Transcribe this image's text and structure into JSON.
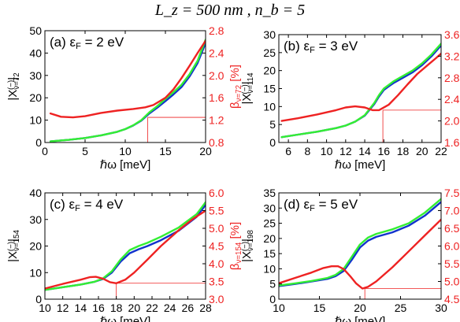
{
  "figure": {
    "title": "L_z = 500 nm , n_b = 5"
  },
  "colors": {
    "green": "#33ee33",
    "blue": "#1133cc",
    "red": "#ee2222",
    "axis": "#000000",
    "right_axis": "#ee2222"
  },
  "chart_data": [
    {
      "type": "line",
      "label": "(a) ε_F = 2 eV",
      "xlabel": "ℏω [meV]",
      "ylabel": "|X_{ν=72}^{(−)}|",
      "y2label": "β_{ν=72} [%]",
      "xlim": [
        0,
        20
      ],
      "ylim": [
        0,
        50
      ],
      "y2lim": [
        0.8,
        2.8
      ],
      "x_ticks": [
        "0",
        "5",
        "10",
        "15",
        "20"
      ],
      "y_ticks": [
        "0",
        "10",
        "20",
        "30",
        "40",
        "50"
      ],
      "y2_ticks": [
        "0.8",
        "1.2",
        "1.6",
        "2.0",
        "2.4",
        "2.8"
      ],
      "marker": {
        "x": 12.8,
        "y2": 1.25
      },
      "series": [
        {
          "color_key": "green",
          "axis": "left",
          "x": [
            0.7,
            3,
            5,
            7,
            9,
            10,
            11,
            12,
            13,
            14,
            15,
            16,
            17,
            18,
            19,
            20
          ],
          "y": [
            0.5,
            1.2,
            2.0,
            3.2,
            4.8,
            6.0,
            7.7,
            10.0,
            13.5,
            16.3,
            19.5,
            22.5,
            25.8,
            30.5,
            36.5,
            46.0
          ]
        },
        {
          "color_key": "blue",
          "axis": "left",
          "x": [
            0.7,
            3,
            5,
            7,
            9,
            10,
            11,
            12,
            13,
            14,
            15,
            16,
            17,
            18,
            19,
            20
          ],
          "y": [
            0.5,
            1.2,
            2.0,
            3.2,
            4.8,
            6.0,
            7.6,
            9.8,
            13.0,
            15.6,
            18.5,
            21.5,
            24.8,
            29.5,
            35.5,
            44.5
          ]
        },
        {
          "color_key": "red",
          "axis": "right",
          "x": [
            0.7,
            2,
            3.5,
            5,
            7,
            9,
            11,
            12.5,
            13.5,
            15,
            16,
            17,
            18,
            19,
            20
          ],
          "y": [
            1.32,
            1.26,
            1.25,
            1.27,
            1.33,
            1.37,
            1.4,
            1.43,
            1.47,
            1.6,
            1.75,
            1.95,
            2.17,
            2.4,
            2.62
          ]
        }
      ]
    },
    {
      "type": "line",
      "label": "(b) ε_F = 3 eV",
      "xlabel": "ℏω [meV]",
      "ylabel": "|X_{ν=114}^{(−)}|",
      "y2label": "β_{ν=114} [%]",
      "xlim": [
        5,
        22
      ],
      "ylim": [
        0,
        30
      ],
      "y2lim": [
        1.6,
        3.6
      ],
      "x_ticks": [
        "6",
        "8",
        "10",
        "12",
        "14",
        "16",
        "18",
        "20",
        "22"
      ],
      "y_ticks": [
        "0",
        "5",
        "10",
        "15",
        "20",
        "25",
        "30"
      ],
      "y2_ticks": [
        "1.6",
        "2.0",
        "2.4",
        "2.8",
        "3.2",
        "3.6"
      ],
      "marker": {
        "x": 15.9,
        "y2": 2.2
      },
      "series": [
        {
          "color_key": "green",
          "axis": "left",
          "x": [
            5.3,
            7,
            9,
            11,
            12,
            13,
            14,
            15,
            15.5,
            16,
            16.5,
            17,
            18,
            19,
            20,
            21,
            22
          ],
          "y": [
            1.5,
            2.2,
            3.0,
            4.0,
            4.7,
            5.8,
            7.6,
            11.0,
            13.2,
            15.0,
            16.0,
            17.0,
            18.5,
            20.0,
            22.0,
            24.5,
            27.5
          ]
        },
        {
          "color_key": "blue",
          "axis": "left",
          "x": [
            5.3,
            7,
            9,
            11,
            12,
            13,
            14,
            15,
            15.5,
            16,
            16.5,
            17,
            18,
            19,
            20,
            21,
            22
          ],
          "y": [
            1.5,
            2.2,
            3.0,
            4.0,
            4.7,
            5.8,
            7.5,
            10.7,
            12.8,
            14.6,
            15.6,
            16.5,
            18.0,
            19.5,
            21.5,
            24.0,
            27.0
          ]
        },
        {
          "color_key": "red",
          "axis": "right",
          "x": [
            5.3,
            7,
            9,
            11,
            12,
            13,
            14,
            14.8,
            15.5,
            16.5,
            17.5,
            18.5,
            19.5,
            20.5,
            21.5,
            22
          ],
          "y": [
            2.0,
            2.05,
            2.12,
            2.2,
            2.25,
            2.27,
            2.25,
            2.2,
            2.2,
            2.3,
            2.48,
            2.68,
            2.87,
            3.02,
            3.17,
            3.25
          ]
        }
      ]
    },
    {
      "type": "line",
      "label": "(c) ε_F = 4 eV",
      "xlabel": "ℏω [meV]",
      "ylabel": "|X_{ν=154}^{(−)}|",
      "y2label": "β_{ν=154} [%]",
      "xlim": [
        10,
        28
      ],
      "ylim": [
        0,
        40
      ],
      "y2lim": [
        3.0,
        6.0
      ],
      "x_ticks": [
        "10",
        "12",
        "14",
        "16",
        "18",
        "20",
        "22",
        "24",
        "26",
        "28"
      ],
      "y_ticks": [
        "0",
        "10",
        "20",
        "30",
        "40"
      ],
      "y2_ticks": [
        "3.0",
        "3.5",
        "4.0",
        "4.5",
        "5.0",
        "5.5",
        "6.0"
      ],
      "marker": {
        "x": 18.0,
        "y2": 3.45
      },
      "series": [
        {
          "color_key": "green",
          "axis": "left",
          "x": [
            10,
            12,
            14,
            15.5,
            16.5,
            17.5,
            18.5,
            19.5,
            20.5,
            21.5,
            23,
            25,
            27,
            28
          ],
          "y": [
            3.5,
            4.5,
            5.5,
            6.5,
            7.8,
            10.5,
            15.0,
            18.5,
            20.0,
            21.2,
            23.5,
            27.0,
            32.0,
            36.5
          ]
        },
        {
          "color_key": "blue",
          "axis": "left",
          "x": [
            10,
            12,
            14,
            15.5,
            16.5,
            17.5,
            18.5,
            19.5,
            20.5,
            21.5,
            23,
            25,
            27,
            28
          ],
          "y": [
            3.5,
            4.5,
            5.5,
            6.5,
            7.6,
            10.0,
            14.2,
            17.3,
            18.8,
            20.0,
            22.2,
            25.8,
            31.0,
            35.5
          ]
        },
        {
          "color_key": "red",
          "axis": "right",
          "x": [
            10,
            12,
            14,
            15,
            15.7,
            16.5,
            17.3,
            18,
            19,
            20,
            21.5,
            23,
            25,
            26.5,
            28
          ],
          "y": [
            3.3,
            3.43,
            3.55,
            3.62,
            3.63,
            3.58,
            3.48,
            3.45,
            3.55,
            3.75,
            4.12,
            4.5,
            4.95,
            5.25,
            5.5
          ]
        }
      ]
    },
    {
      "type": "line",
      "label": "(d) ε_F = 5 eV",
      "xlabel": "ℏω [meV]",
      "ylabel": "|X_{ν=198}^{(−)}|",
      "y2label": "β_{ν=198} [%]",
      "xlim": [
        10,
        30
      ],
      "ylim": [
        0,
        35
      ],
      "y2lim": [
        4.5,
        7.5
      ],
      "x_ticks": [
        "10",
        "15",
        "20",
        "25",
        "30"
      ],
      "y_ticks": [
        "0",
        "5",
        "10",
        "15",
        "20",
        "25",
        "30",
        "35"
      ],
      "y2_ticks": [
        "4.5",
        "5.0",
        "5.5",
        "6.0",
        "6.5",
        "7.0",
        "7.5"
      ],
      "marker": {
        "x": 20.6,
        "y2": 4.8
      },
      "series": [
        {
          "color_key": "green",
          "axis": "left",
          "x": [
            10,
            12,
            14,
            16,
            17,
            18,
            19,
            20,
            21,
            22,
            24,
            26,
            28,
            30
          ],
          "y": [
            4.5,
            5.2,
            6.0,
            7.0,
            8.0,
            10.0,
            14.0,
            18.0,
            20.3,
            21.5,
            23.0,
            25.0,
            28.5,
            33.0
          ]
        },
        {
          "color_key": "blue",
          "axis": "left",
          "x": [
            10,
            12,
            14,
            16,
            17,
            18,
            19,
            20,
            21,
            22,
            24,
            26,
            28,
            30
          ],
          "y": [
            4.3,
            5.0,
            5.8,
            6.7,
            7.6,
            9.3,
            13.0,
            17.0,
            19.3,
            20.5,
            22.0,
            24.2,
            27.5,
            32.0
          ]
        },
        {
          "color_key": "red",
          "axis": "right",
          "x": [
            10,
            12,
            14,
            15.5,
            16.5,
            17.3,
            18,
            18.8,
            19.5,
            20.3,
            21,
            22,
            24,
            26,
            28,
            30
          ],
          "y": [
            4.95,
            5.1,
            5.25,
            5.38,
            5.43,
            5.43,
            5.35,
            5.15,
            4.95,
            4.8,
            4.85,
            5.0,
            5.4,
            5.85,
            6.3,
            6.75
          ]
        }
      ]
    }
  ]
}
